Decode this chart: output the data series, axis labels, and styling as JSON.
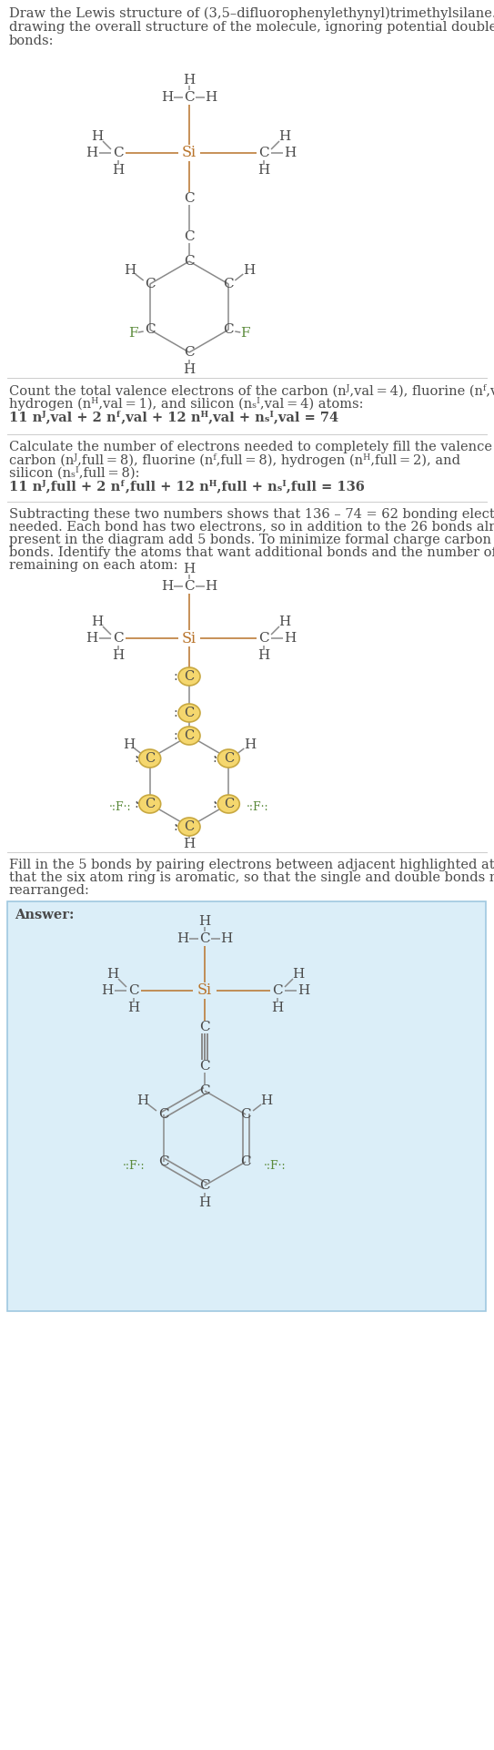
{
  "bg_color": "#ffffff",
  "text_color": "#4a4a4a",
  "si_color": "#b8732a",
  "f_color": "#5a8a3a",
  "bond_color": "#8a8a8a",
  "highlight_fill": "#f5d76e",
  "highlight_edge": "#c8a840",
  "answer_bg": "#dbeef8",
  "answer_edge": "#a0c8e0",
  "sep_color": "#cccccc",
  "fig_width": 5.43,
  "fig_height": 19.22,
  "dpi": 100
}
